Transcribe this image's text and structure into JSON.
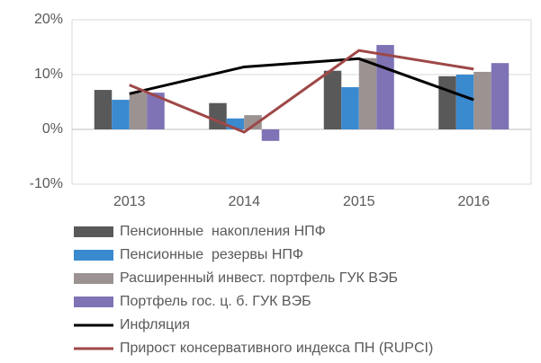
{
  "chart_data": {
    "type": "bar",
    "categories": [
      "2013",
      "2014",
      "2015",
      "2016"
    ],
    "ylim": [
      -10,
      20
    ],
    "yticks": [
      {
        "value": -10,
        "label": "-10%"
      },
      {
        "value": 0,
        "label": "0%"
      },
      {
        "value": 10,
        "label": "10%"
      },
      {
        "value": 20,
        "label": "20%"
      }
    ],
    "grid": true,
    "legend": "bottom",
    "series": [
      {
        "name": "Пенсионные  накопления НПФ",
        "type": "bar",
        "color": "#595959",
        "values": [
          7.2,
          4.8,
          10.7,
          9.7
        ]
      },
      {
        "name": "Пенсионные  резервы НПФ",
        "type": "bar",
        "color": "#3a8ad0",
        "values": [
          5.4,
          2.0,
          7.7,
          10.0
        ]
      },
      {
        "name": "Расширенный инвест. портфель ГУК ВЭБ",
        "type": "bar",
        "color": "#9b9291",
        "values": [
          6.7,
          2.6,
          13.0,
          10.5
        ]
      },
      {
        "name": "Портфель гос. ц. б. ГУК ВЭБ",
        "type": "bar",
        "color": "#7f72b5",
        "values": [
          6.7,
          -2.1,
          15.4,
          12.1
        ]
      },
      {
        "name": "Инфляция",
        "type": "line",
        "color": "#000000",
        "values": [
          6.5,
          11.4,
          12.9,
          5.4
        ]
      },
      {
        "name": "Прирост консервативного индекса ПН (RUPCI)",
        "type": "line",
        "color": "#9e4747",
        "values": [
          8.1,
          -0.5,
          14.4,
          11.0
        ]
      }
    ]
  }
}
